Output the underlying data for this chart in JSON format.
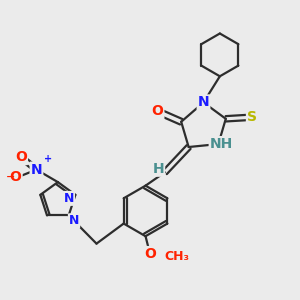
{
  "background_color": "#ebebeb",
  "bond_color": "#2d2d2d",
  "atom_colors": {
    "N": "#1a1aff",
    "O": "#ff2200",
    "S": "#b8b800",
    "NH": "#4a9090",
    "H": "#4a9090"
  },
  "line_width": 1.6,
  "font_size": 10,
  "font_size_small": 9
}
